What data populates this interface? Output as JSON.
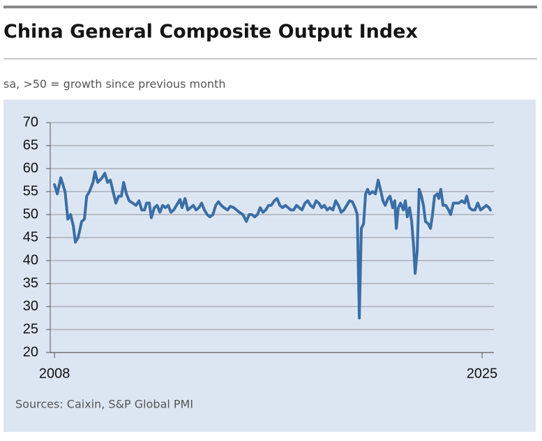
{
  "chart_data": {
    "type": "line",
    "title": "China General Composite Output Index",
    "subtitle": "sa, >50 = growth since previous month",
    "source": "Sources: Caixin, S&P Global PMI",
    "x": [
      2008.0,
      2008.11,
      2008.25,
      2008.42,
      2008.53,
      2008.64,
      2008.75,
      2008.83,
      2008.94,
      2009.08,
      2009.19,
      2009.28,
      2009.39,
      2009.53,
      2009.61,
      2009.72,
      2009.89,
      2010.0,
      2010.11,
      2010.22,
      2010.33,
      2010.44,
      2010.55,
      2010.66,
      2010.75,
      2010.86,
      2010.97,
      2011.11,
      2011.24,
      2011.36,
      2011.47,
      2011.58,
      2011.66,
      2011.77,
      2011.85,
      2011.97,
      2012.08,
      2012.19,
      2012.3,
      2012.41,
      2012.52,
      2012.63,
      2012.74,
      2012.85,
      2012.99,
      2013.07,
      2013.19,
      2013.3,
      2013.41,
      2013.52,
      2013.63,
      2013.74,
      2013.85,
      2013.96,
      2014.07,
      2014.18,
      2014.3,
      2014.41,
      2014.52,
      2014.63,
      2014.74,
      2014.88,
      2014.99,
      2015.13,
      2015.24,
      2015.35,
      2015.49,
      2015.63,
      2015.74,
      2015.85,
      2015.96,
      2016.07,
      2016.18,
      2016.29,
      2016.4,
      2016.51,
      2016.62,
      2016.74,
      2016.85,
      2016.96,
      2017.07,
      2017.18,
      2017.29,
      2017.4,
      2017.51,
      2017.62,
      2017.73,
      2017.84,
      2017.96,
      2018.07,
      2018.18,
      2018.29,
      2018.4,
      2018.51,
      2018.62,
      2018.73,
      2018.84,
      2018.95,
      2019.07,
      2019.18,
      2019.29,
      2019.4,
      2019.51,
      2019.62,
      2019.73,
      2019.84,
      2019.95,
      2020.04,
      2020.12,
      2020.2,
      2020.29,
      2020.37,
      2020.45,
      2020.53,
      2020.65,
      2020.76,
      2020.87,
      2020.98,
      2021.06,
      2021.15,
      2021.26,
      2021.34,
      2021.45,
      2021.53,
      2021.59,
      2021.67,
      2021.76,
      2021.87,
      2021.95,
      2022.03,
      2022.12,
      2022.2,
      2022.28,
      2022.34,
      2022.42,
      2022.5,
      2022.59,
      2022.67,
      2022.75,
      2022.86,
      2022.95,
      2023.03,
      2023.11,
      2023.22,
      2023.28,
      2023.36,
      2023.45,
      2023.56,
      2023.67,
      2023.75,
      2023.86,
      2023.97,
      2024.08,
      2024.2,
      2024.31,
      2024.39,
      2024.5,
      2024.61,
      2024.72,
      2024.83,
      2024.94,
      2025.06,
      2025.17,
      2025.28,
      2025.33
    ],
    "series": [
      {
        "name": "China General Composite Output Index",
        "color": "#3a6ea5",
        "values": [
          56.5,
          54.5,
          58,
          55,
          49,
          50,
          47.5,
          44,
          45,
          48.5,
          49,
          54,
          55,
          57,
          59.3,
          57,
          58,
          59,
          57,
          57.5,
          55,
          52.5,
          54,
          54,
          57,
          54.5,
          53,
          52.5,
          52,
          53,
          51,
          51,
          52.5,
          52.5,
          49.3,
          51.5,
          52,
          50.5,
          52,
          51.5,
          52,
          50.5,
          51,
          52,
          53.3,
          51.5,
          53.5,
          51,
          51.5,
          52,
          51,
          51.5,
          52.5,
          51,
          50,
          49.5,
          50,
          52,
          52.8,
          52,
          51.5,
          51,
          51.8,
          51.5,
          51,
          50.5,
          50,
          48.5,
          50,
          50,
          49.5,
          50,
          51.5,
          50.5,
          51,
          52,
          52,
          53,
          53.5,
          52,
          51.5,
          52,
          51.5,
          51,
          51,
          52,
          51.5,
          51,
          52.5,
          53,
          52,
          51.5,
          53,
          52.5,
          51.5,
          52,
          51,
          51.5,
          51,
          53,
          52,
          50.5,
          51,
          52,
          53,
          52.8,
          51.5,
          50,
          27.5,
          47,
          48,
          54.5,
          55.5,
          54.5,
          55,
          54.5,
          57.5,
          55,
          53,
          52,
          53.5,
          54,
          51.5,
          53,
          47,
          51.5,
          52.5,
          51,
          53,
          49.5,
          51.5,
          48.5,
          43,
          37.2,
          42,
          55.5,
          54,
          52,
          48.5,
          48,
          47,
          50,
          54,
          54.5,
          53.5,
          55.5,
          52,
          52,
          51,
          50,
          52.5,
          52.5,
          52.5,
          53,
          52.5,
          54,
          51.5,
          51,
          51,
          52.5,
          51,
          51.5,
          52,
          51.5,
          51
        ]
      }
    ],
    "xlim": [
      2007.83,
      2025.47
    ],
    "xticks": [
      2008,
      2025
    ],
    "ylim": [
      20,
      70
    ],
    "yticks": [
      20,
      25,
      30,
      35,
      40,
      45,
      50,
      55,
      60,
      65,
      70
    ],
    "grid": true
  }
}
